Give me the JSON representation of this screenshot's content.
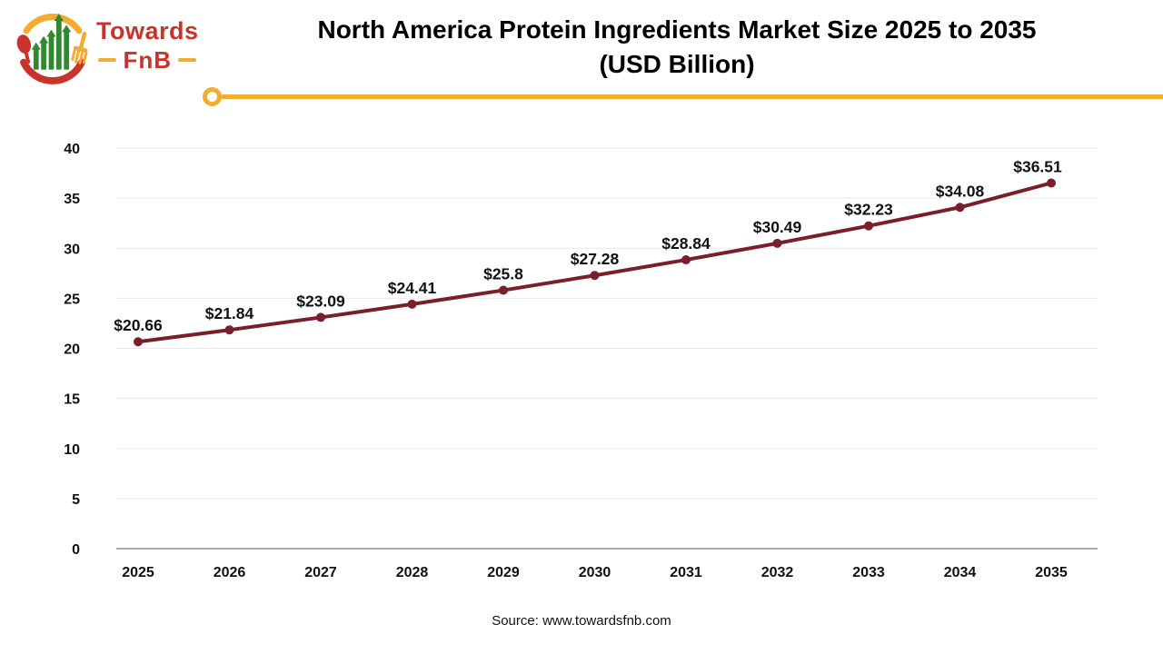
{
  "logo": {
    "towards": "Towards",
    "fnb": "FnB"
  },
  "header": {
    "title_line1": "North America Protein Ingredients Market Size 2025 to 2035",
    "title_line2": "(USD Billion)"
  },
  "footer": {
    "source": "Source: www.towardsfnb.com"
  },
  "colors": {
    "line": "#7A1E2B",
    "accent_yellow": "#F2AC2F",
    "logo_red": "#C8332B",
    "logo_green": "#2F8A2F",
    "grid": "#E9E9E9",
    "axis": "#A9A9A9",
    "text": "#111111"
  },
  "chart_data": {
    "type": "line",
    "title": "North America Protein Ingredients Market Size 2025 to 2035 (USD Billion)",
    "categories": [
      "2025",
      "2026",
      "2027",
      "2028",
      "2029",
      "2030",
      "2031",
      "2032",
      "2033",
      "2034",
      "2035"
    ],
    "series": [
      {
        "name": "Market Size (USD Billion)",
        "values": [
          20.66,
          21.84,
          23.09,
          24.41,
          25.8,
          27.28,
          28.84,
          30.49,
          32.23,
          34.08,
          36.51
        ]
      }
    ],
    "point_labels": [
      "$20.66",
      "$21.84",
      "$23.09",
      "$24.41",
      "$25.8",
      "$27.28",
      "$28.84",
      "$30.49",
      "$32.23",
      "$34.08",
      "$36.51"
    ],
    "xlabel": "",
    "ylabel": "",
    "ylim": [
      0,
      40
    ],
    "ytick_step": 5,
    "grid": true,
    "legend": "none"
  }
}
